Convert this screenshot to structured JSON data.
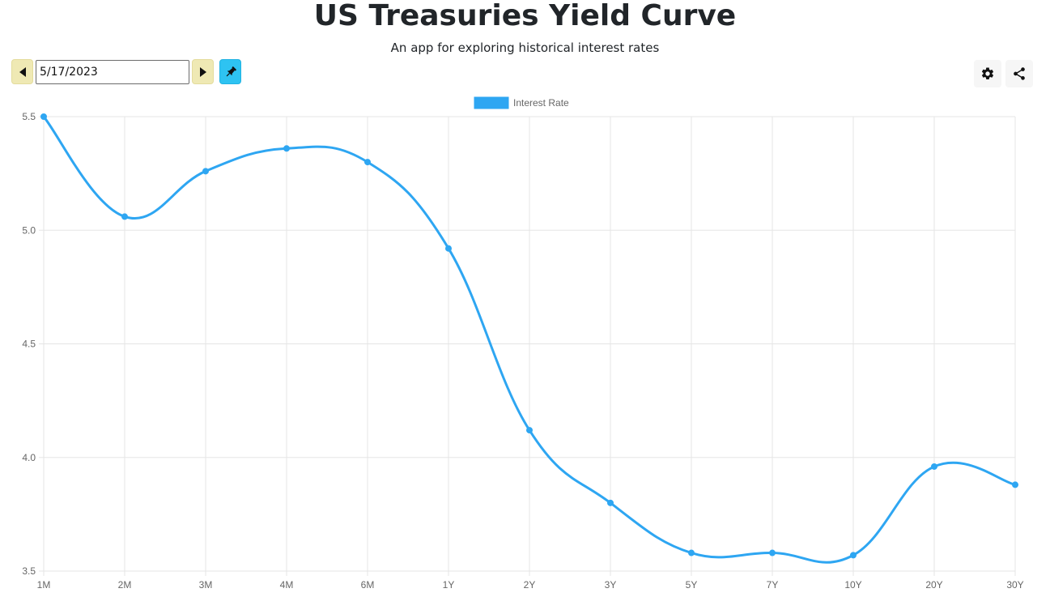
{
  "header": {
    "title": "US Treasuries Yield Curve",
    "subtitle": "An app for exploring historical interest rates"
  },
  "toolbar": {
    "date_value": "5/17/2023",
    "prev_icon": "triangle-left-icon",
    "next_icon": "triangle-right-icon",
    "pin_icon": "pushpin-icon",
    "settings_icon": "gear-icon",
    "share_icon": "share-icon"
  },
  "colors": {
    "accent": "#2ea6f2",
    "nav_button": "#efe9b4",
    "pin_button": "#2ec3f2",
    "grid": "#e5e5e5"
  },
  "chart_data": {
    "type": "line",
    "categories": [
      "1M",
      "2M",
      "3M",
      "4M",
      "6M",
      "1Y",
      "2Y",
      "3Y",
      "5Y",
      "7Y",
      "10Y",
      "20Y",
      "30Y"
    ],
    "series": [
      {
        "name": "Interest Rate",
        "values": [
          5.5,
          5.06,
          5.26,
          5.36,
          5.3,
          4.92,
          4.12,
          3.8,
          3.58,
          3.58,
          3.57,
          3.96,
          3.88
        ]
      }
    ],
    "title": "",
    "xlabel": "",
    "ylabel": "",
    "ylim": [
      3.5,
      5.5
    ],
    "yticks": [
      "5.5",
      "5.0",
      "4.5",
      "4.0",
      "3.5"
    ],
    "grid": true,
    "legend": "top-center"
  }
}
